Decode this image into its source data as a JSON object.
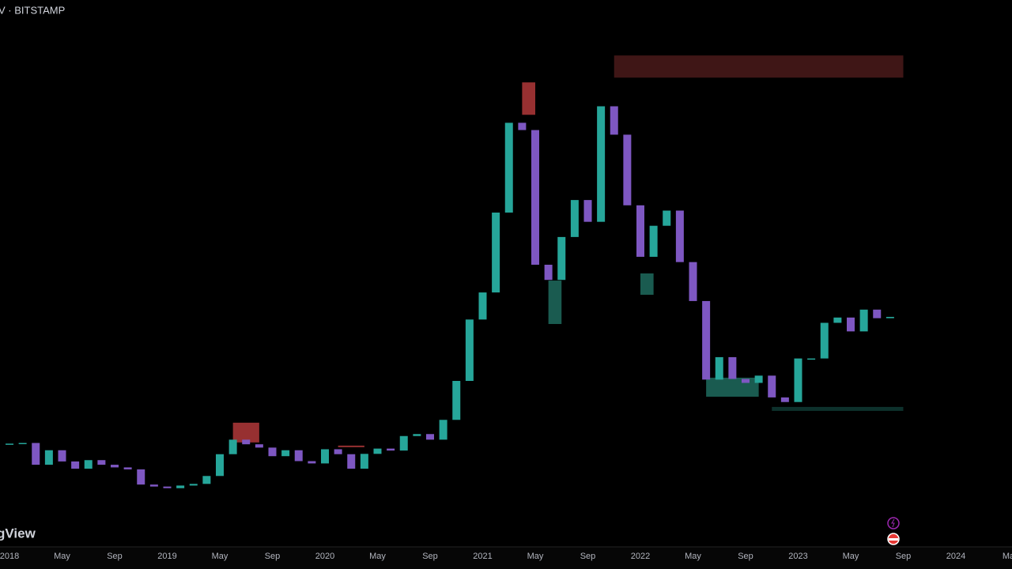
{
  "header": {
    "symbol": "V · BITSTAMP",
    "logo": "gView"
  },
  "chart_data": {
    "type": "candlestick",
    "x": [
      "2018-01",
      "2018-02",
      "2018-03",
      "2018-04",
      "2018-05",
      "2018-06",
      "2018-07",
      "2018-08",
      "2018-09",
      "2018-10",
      "2018-11",
      "2018-12",
      "2019-01",
      "2019-02",
      "2019-03",
      "2019-04",
      "2019-05",
      "2019-06",
      "2019-07",
      "2019-08",
      "2019-09",
      "2019-10",
      "2019-11",
      "2019-12",
      "2020-01",
      "2020-02",
      "2020-03",
      "2020-04",
      "2020-05",
      "2020-06",
      "2020-07",
      "2020-08",
      "2020-09",
      "2020-10",
      "2020-11",
      "2020-12",
      "2021-01",
      "2021-02",
      "2021-03",
      "2021-04",
      "2021-05",
      "2021-06",
      "2021-07",
      "2021-08",
      "2021-09",
      "2021-10",
      "2021-11",
      "2021-12",
      "2022-01",
      "2022-02",
      "2022-03",
      "2022-04",
      "2022-05",
      "2022-06",
      "2022-07",
      "2022-08",
      "2022-09",
      "2022-10",
      "2022-11",
      "2022-12",
      "2023-01",
      "2023-02",
      "2023-03",
      "2023-04",
      "2023-05",
      "2023-06",
      "2023-07",
      "2023-08"
    ],
    "series": [
      {
        "values": [
          10200,
          10300,
          7000,
          9200,
          7500,
          6400,
          7700,
          7000,
          6600,
          6300,
          4000,
          3700,
          3450,
          3850,
          4100,
          5300,
          8600,
          10800,
          10100,
          9600,
          8300,
          9200,
          7550,
          7200,
          9350,
          8600,
          6400,
          8650,
          9450,
          9150,
          11350,
          11650,
          10800,
          13800,
          19700,
          29000,
          33100,
          45200,
          58800,
          57700,
          37300,
          35000,
          41500,
          47100,
          43800,
          61300,
          57000,
          46300,
          38500,
          43200,
          45500,
          37700,
          31800,
          19900,
          23300,
          20000,
          19400,
          20500,
          17200,
          16500,
          23100,
          23100,
          28500,
          29300,
          27200,
          30500,
          29200,
          29400
        ]
      }
    ],
    "up_color": "#26a69a",
    "down_color": "#7e57c2",
    "zones": [
      {
        "x": [
          "2019-06",
          "2019-08"
        ],
        "y": [
          10380,
          13370
        ],
        "color": "#b2383a"
      },
      {
        "x": [
          "2020-02",
          "2020-04"
        ],
        "y": [
          9700,
          9900
        ],
        "color": "#b2383a"
      },
      {
        "x": [
          "2021-04",
          "2021-05"
        ],
        "y": [
          60010,
          64920
        ],
        "color": "#b2383a"
      },
      {
        "x": [
          "2021-11",
          "2023-09"
        ],
        "y": [
          65640,
          69000
        ],
        "color": "#4a1a1a"
      },
      {
        "x": [
          "2021-06",
          "2021-07"
        ],
        "y": [
          28320,
          34900
        ],
        "color": "#1e6b5e"
      },
      {
        "x": [
          "2022-01",
          "2022-02"
        ],
        "y": [
          32750,
          35980
        ],
        "color": "#1e6b5e"
      },
      {
        "x": [
          "2022-06",
          "2022-10"
        ],
        "y": [
          17310,
          20190
        ],
        "color": "#1e6b5e"
      },
      {
        "x": [
          "2022-11",
          "2023-09"
        ],
        "y": [
          15160,
          15760
        ],
        "color": "#0f3a34"
      }
    ],
    "ylim": [
      -5200,
      77400
    ],
    "xticks": [
      {
        "value": "2018-01",
        "label": "2018"
      },
      {
        "value": "2018-05",
        "label": "May"
      },
      {
        "value": "2018-09",
        "label": "Sep"
      },
      {
        "value": "2019-01",
        "label": "2019"
      },
      {
        "value": "2019-05",
        "label": "May"
      },
      {
        "value": "2019-09",
        "label": "Sep"
      },
      {
        "value": "2020-01",
        "label": "2020"
      },
      {
        "value": "2020-05",
        "label": "May"
      },
      {
        "value": "2020-09",
        "label": "Sep"
      },
      {
        "value": "2021-01",
        "label": "2021"
      },
      {
        "value": "2021-05",
        "label": "May"
      },
      {
        "value": "2021-09",
        "label": "Sep"
      },
      {
        "value": "2022-01",
        "label": "2022"
      },
      {
        "value": "2022-05",
        "label": "May"
      },
      {
        "value": "2022-09",
        "label": "Sep"
      },
      {
        "value": "2023-01",
        "label": "2023"
      },
      {
        "value": "2023-05",
        "label": "May"
      },
      {
        "value": "2023-09",
        "label": "Sep"
      },
      {
        "value": "2024-01",
        "label": "2024"
      },
      {
        "value": "2024-05",
        "label": "Ma"
      }
    ]
  }
}
